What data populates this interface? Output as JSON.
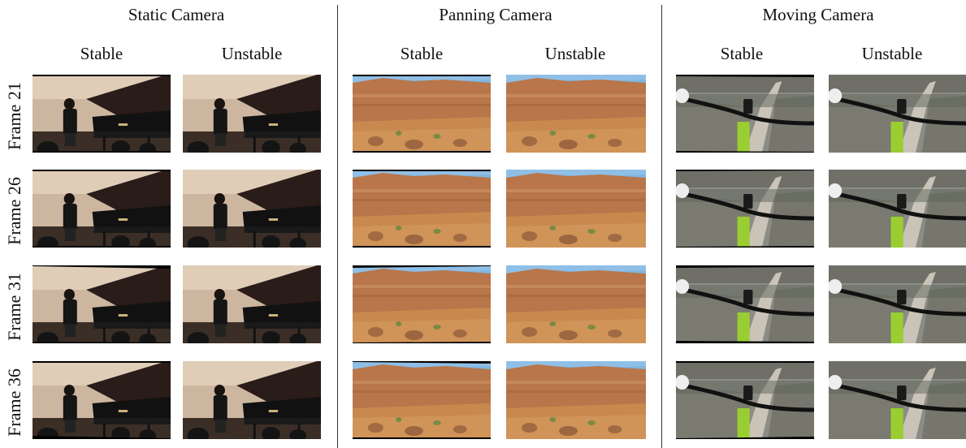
{
  "groups": [
    {
      "title": "Static Camera",
      "scene": "piano",
      "stable_label": "Stable",
      "unstable_label": "Unstable"
    },
    {
      "title": "Panning Camera",
      "scene": "canyon",
      "stable_label": "Stable",
      "unstable_label": "Unstable"
    },
    {
      "title": "Moving Camera",
      "scene": "bike",
      "stable_label": "Stable",
      "unstable_label": "Unstable"
    }
  ],
  "rows": [
    {
      "label": "Frame 21"
    },
    {
      "label": "Frame 26"
    },
    {
      "label": "Frame 31"
    },
    {
      "label": "Frame 36"
    }
  ]
}
